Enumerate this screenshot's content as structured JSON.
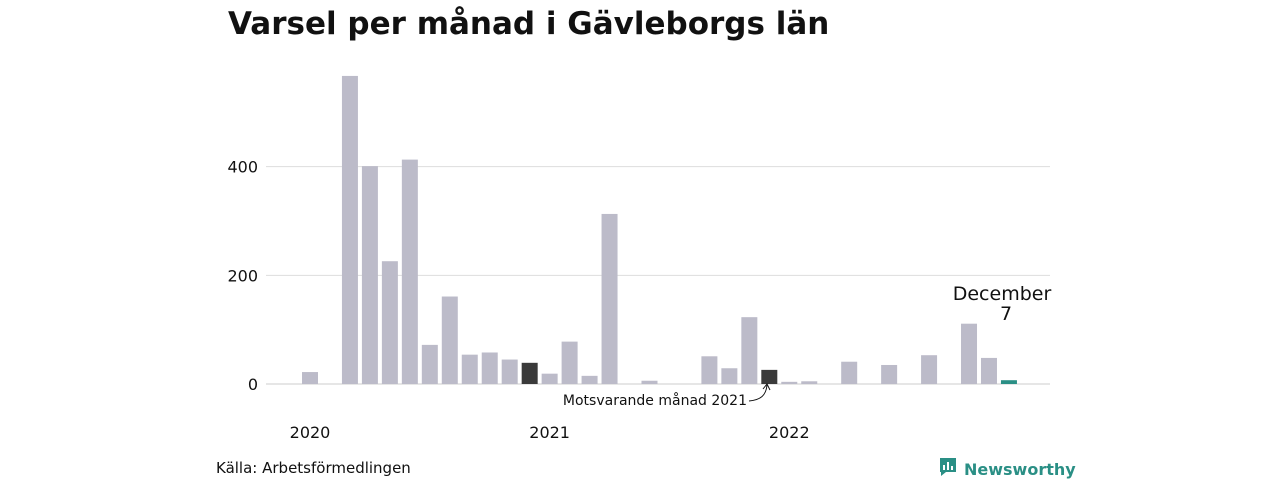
{
  "chart_data": {
    "type": "bar",
    "title": "Varsel per månad i Gävleborgs län",
    "xlabel": "",
    "ylabel": "",
    "ylim": [
      0,
      600
    ],
    "yticks": [
      0,
      200,
      400
    ],
    "grid": true,
    "x_ticks": [
      {
        "label": "2020",
        "index": 0
      },
      {
        "label": "2021",
        "index": 12
      },
      {
        "label": "2022",
        "index": 24
      }
    ],
    "categories": [
      "2020-01",
      "2020-02",
      "2020-03",
      "2020-04",
      "2020-05",
      "2020-06",
      "2020-07",
      "2020-08",
      "2020-09",
      "2020-10",
      "2020-11",
      "2020-12",
      "2021-01",
      "2021-02",
      "2021-03",
      "2021-04",
      "2021-05",
      "2021-06",
      "2021-07",
      "2021-08",
      "2021-09",
      "2021-10",
      "2021-11",
      "2021-12",
      "2022-01",
      "2022-02",
      "2022-03",
      "2022-04",
      "2022-05",
      "2022-06",
      "2022-07",
      "2022-08",
      "2022-09",
      "2022-10",
      "2022-11",
      "2022-12"
    ],
    "values": [
      22,
      0,
      567,
      401,
      226,
      413,
      72,
      161,
      54,
      58,
      45,
      39,
      19,
      78,
      15,
      313,
      0,
      6,
      0,
      0,
      51,
      29,
      123,
      26,
      4,
      5,
      0,
      41,
      0,
      35,
      0,
      53,
      0,
      111,
      48,
      7
    ],
    "highlight": [
      {
        "index": 11,
        "role": "corresponding-month-previous-year",
        "color": "#3a3a3a"
      },
      {
        "index": 23,
        "role": "corresponding-month-previous-year",
        "color": "#3a3a3a"
      },
      {
        "index": 35,
        "role": "latest",
        "color": "#2a8f85"
      }
    ],
    "bar_color": "#bcbbc9",
    "annotation": {
      "text": "Motsvarande månad 2021",
      "index": 23
    },
    "last_label": {
      "month": "December",
      "value": "7"
    }
  },
  "footer": {
    "source": "Källa: Arbetsförmedlingen",
    "brand": "Newsworthy"
  },
  "colors": {
    "grid": "#dddddd",
    "axis": "#cccccc",
    "accent": "#2a8f85",
    "highlight_dark": "#3a3a3a"
  },
  "icons": {
    "brand_logo": "bar-chart-speech-bubble-icon"
  }
}
